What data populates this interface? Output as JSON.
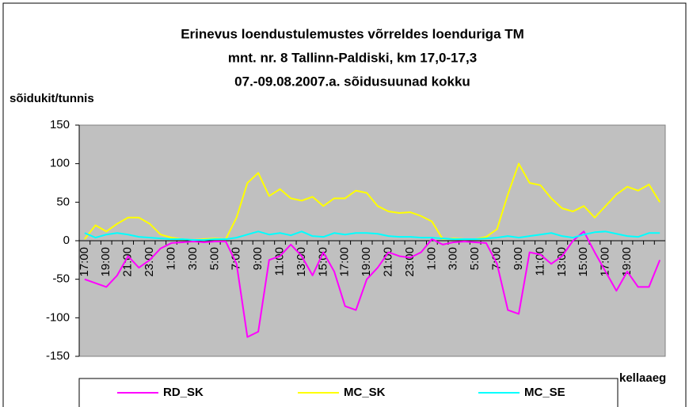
{
  "chart_data": {
    "type": "line",
    "title": [
      "Erinevus loendustulemustes võrreldes loenduriga TM",
      "mnt. nr. 8 Tallinn-Paldiski, km 17,0-17,3",
      "07.-09.08.2007.a. sõidusuunad kokku"
    ],
    "y_label": "sõidukit/tunnis",
    "x_label": "kellaaeg",
    "categories": [
      "17:00",
      null,
      "19:00",
      null,
      "21:00",
      null,
      "23:00",
      null,
      "1:00",
      null,
      "3:00",
      null,
      "5:00",
      null,
      "7:00",
      null,
      "9:00",
      null,
      "11:00",
      null,
      "13:00",
      null,
      "15:00",
      null,
      "17:00",
      null,
      "19:00",
      null,
      "21:00",
      null,
      "23:00",
      null,
      "1:00",
      null,
      "3:00",
      null,
      "5:00",
      null,
      "7:00",
      null,
      "9:00",
      null,
      "11:00",
      null,
      "13:00",
      null,
      "15:00",
      null,
      "17:00",
      null,
      "19:00",
      null,
      null,
      null
    ],
    "series": [
      {
        "name": "RD_SK",
        "color": "#ff00ff",
        "values": [
          -50,
          -55,
          -60,
          -45,
          -20,
          -35,
          -25,
          -10,
          -3,
          -2,
          -1,
          -2,
          -1,
          -1,
          -30,
          -125,
          -118,
          -25,
          -20,
          -5,
          -20,
          -45,
          -15,
          -40,
          -85,
          -90,
          -50,
          -35,
          -15,
          -20,
          -22,
          -15,
          2,
          -5,
          -2,
          -1,
          -2,
          -3,
          -30,
          -90,
          -95,
          -15,
          -18,
          -30,
          -20,
          0,
          12,
          -15,
          -40,
          -65,
          -40,
          -60,
          -60,
          -25
        ]
      },
      {
        "name": "MC_SK",
        "color": "#ffff00",
        "values": [
          2,
          20,
          12,
          22,
          30,
          30,
          22,
          8,
          4,
          2,
          1,
          2,
          3,
          2,
          30,
          75,
          88,
          58,
          67,
          55,
          52,
          57,
          45,
          55,
          55,
          65,
          62,
          45,
          38,
          36,
          37,
          32,
          25,
          2,
          3,
          2,
          2,
          5,
          15,
          60,
          100,
          75,
          72,
          55,
          42,
          38,
          45,
          30,
          45,
          60,
          70,
          65,
          73,
          50
        ]
      },
      {
        "name": "MC_SE",
        "color": "#00ffff",
        "values": [
          10,
          4,
          8,
          10,
          8,
          5,
          4,
          3,
          2,
          2,
          1,
          1,
          2,
          2,
          4,
          8,
          12,
          8,
          10,
          7,
          12,
          6,
          5,
          10,
          8,
          10,
          10,
          9,
          6,
          5,
          5,
          4,
          4,
          3,
          2,
          2,
          2,
          3,
          4,
          6,
          4,
          6,
          8,
          10,
          6,
          4,
          8,
          11,
          12,
          9,
          6,
          5,
          10,
          10
        ]
      }
    ],
    "ylim": [
      -150,
      150
    ],
    "yticks": [
      -150,
      -100,
      -50,
      0,
      50,
      100,
      150
    ],
    "grid": false,
    "legend": "bottom"
  }
}
